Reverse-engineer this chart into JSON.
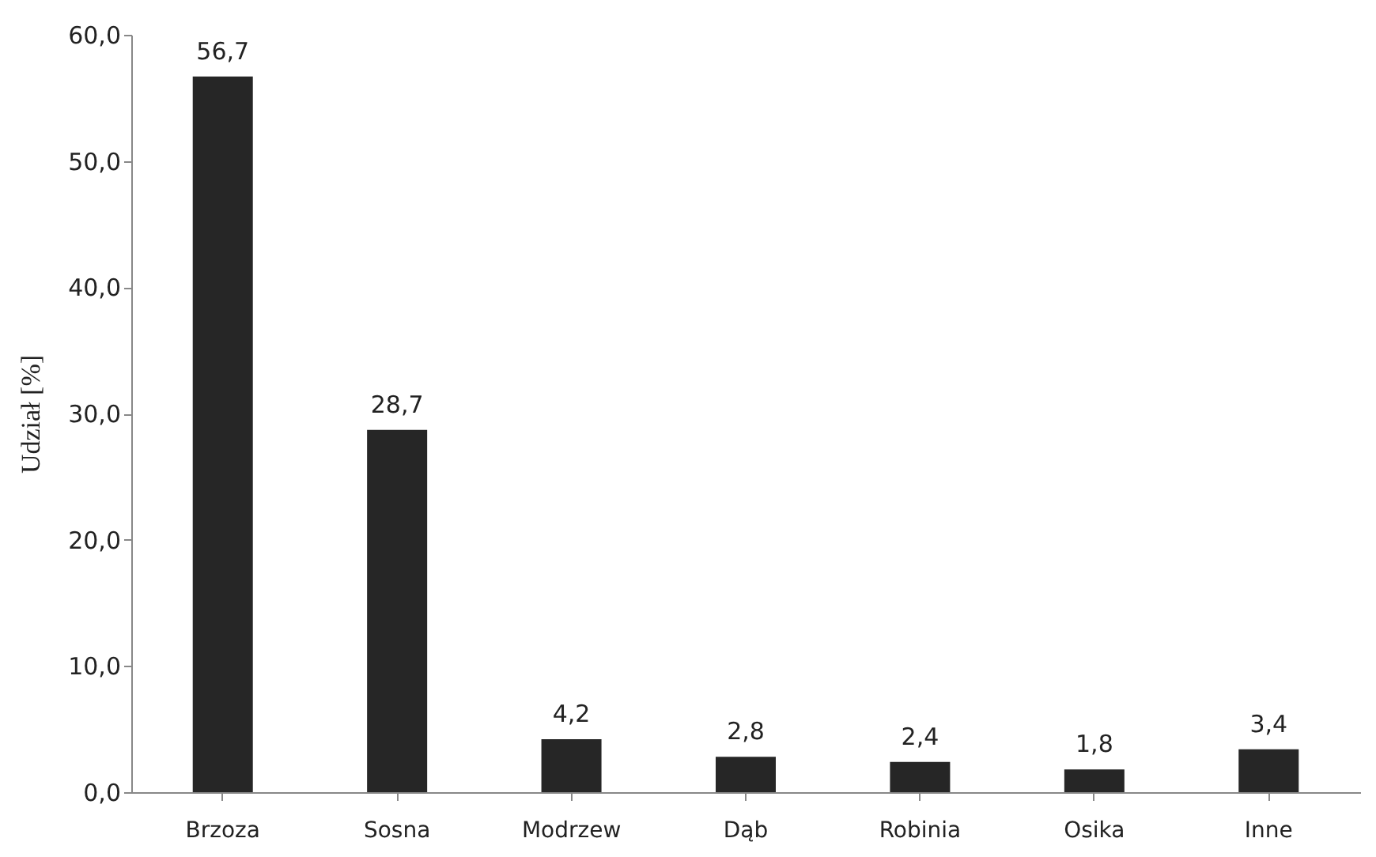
{
  "chart_data": {
    "type": "bar",
    "ylabel": "Udział [%]",
    "categories": [
      "Brzoza",
      "Sosna",
      "Modrzew",
      "Dąb",
      "Robinia",
      "Osika",
      "Inne"
    ],
    "values": [
      56.7,
      28.7,
      4.2,
      2.8,
      2.4,
      1.8,
      3.4
    ],
    "value_labels": [
      "56,7",
      "28,7",
      "4,2",
      "2,8",
      "2,4",
      "1,8",
      "3,4"
    ],
    "color": "#262626",
    "ylim": [
      0,
      60
    ],
    "yticks": [
      {
        "value": 0,
        "label": "0,0"
      },
      {
        "value": 10,
        "label": "10,0"
      },
      {
        "value": 20,
        "label": "20,0"
      },
      {
        "value": 30,
        "label": "30,0"
      },
      {
        "value": 40,
        "label": "40,0"
      },
      {
        "value": 50,
        "label": "50,0"
      },
      {
        "value": 60,
        "label": "60,0"
      }
    ],
    "grid": false
  }
}
